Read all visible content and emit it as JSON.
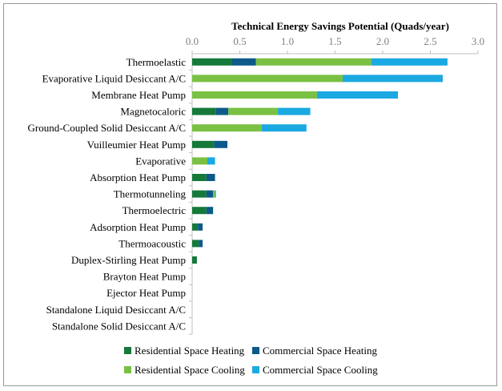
{
  "chart_data": {
    "type": "bar",
    "orientation": "horizontal",
    "stacked": true,
    "title": "Technical Energy Savings Potential (Quads/year)",
    "xlim": [
      0,
      3.0
    ],
    "xticks": [
      "0.0",
      "0.5",
      "1.0",
      "1.5",
      "2.0",
      "2.5",
      "3.0"
    ],
    "xtick_values": [
      0,
      0.5,
      1.0,
      1.5,
      2.0,
      2.5,
      3.0
    ],
    "axis_position": "top",
    "grid": false,
    "legend_position": "bottom",
    "categories": [
      "Thermoelastic",
      "Evaporative Liquid Desiccant A/C",
      "Membrane Heat Pump",
      "Magnetocaloric",
      "Ground-Coupled Solid Desiccant A/C",
      "Vuilleumier Heat Pump",
      "Evaporative",
      "Absorption Heat Pump",
      "Thermotunneling",
      "Thermoelectric",
      "Adsorption Heat Pump",
      "Thermoacoustic",
      "Duplex-Stirling Heat Pump",
      "Brayton Heat Pump",
      "Ejector Heat Pump",
      "Standalone Liquid Desiccant A/C",
      "Standalone Solid Desiccant A/C"
    ],
    "series": [
      {
        "name": "Residential Space Heating",
        "color": "#15793a",
        "values": [
          0.42,
          0,
          0,
          0.25,
          0,
          0.23,
          0,
          0.15,
          0.15,
          0.15,
          0.06,
          0.07,
          0.05,
          0,
          0,
          0,
          0
        ]
      },
      {
        "name": "Commercial Space Heating",
        "color": "#0d5a8a",
        "values": [
          0.25,
          0,
          0,
          0.13,
          0,
          0.14,
          0,
          0.09,
          0.07,
          0.07,
          0.05,
          0.04,
          0,
          0,
          0,
          0,
          0
        ]
      },
      {
        "name": "Residential Space Cooling",
        "color": "#7ac143",
        "values": [
          1.21,
          1.58,
          1.31,
          0.52,
          0.73,
          0,
          0.16,
          0,
          0.02,
          0,
          0,
          0,
          0,
          0,
          0,
          0,
          0
        ]
      },
      {
        "name": "Commercial Space Cooling",
        "color": "#1ba9e1",
        "values": [
          0.8,
          1.05,
          0.85,
          0.34,
          0.47,
          0,
          0.08,
          0,
          0.01,
          0,
          0,
          0,
          0,
          0,
          0,
          0,
          0
        ]
      }
    ]
  }
}
